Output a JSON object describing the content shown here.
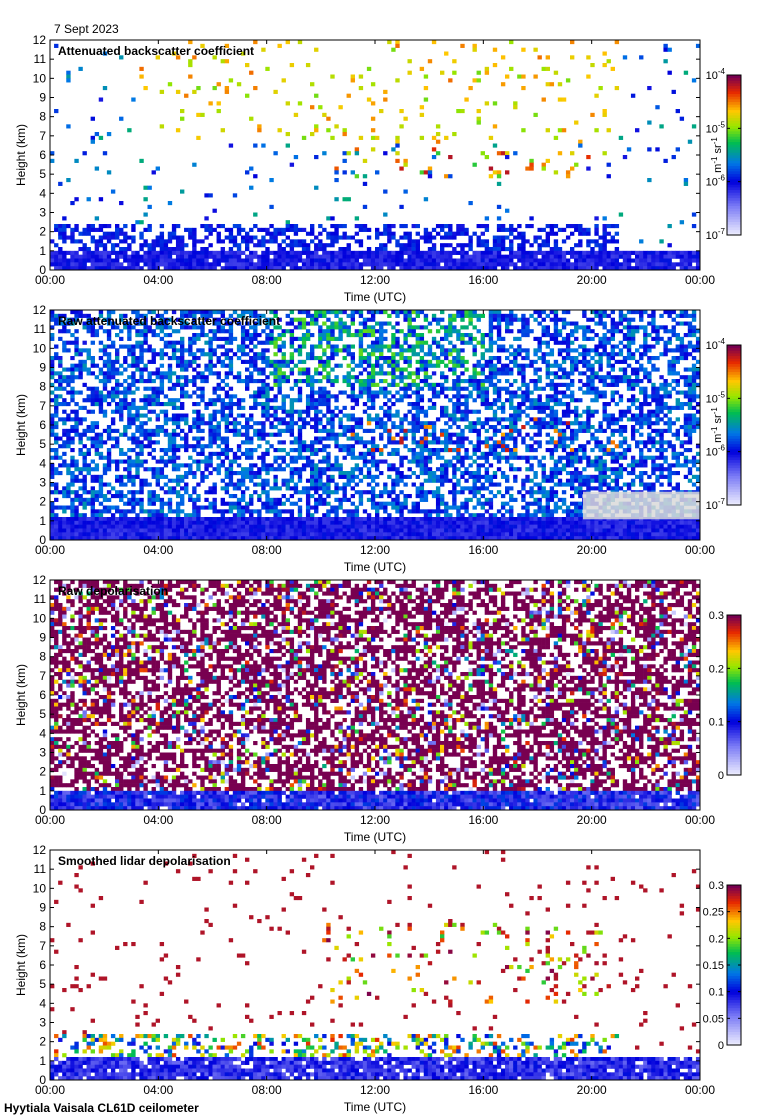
{
  "header": {
    "date": "7 Sept 2023"
  },
  "footer": {
    "instrument": "Hyytiala Vaisala CL61D ceilometer"
  },
  "colors": {
    "frame": "#000000",
    "background": "#ffffff",
    "ground_gray": "#d9d9d9"
  },
  "chart_data": [
    {
      "type": "heatmap",
      "title": "Attenuated backscatter coefficient",
      "xlabel": "Time (UTC)",
      "ylabel": "Height (km)",
      "xticks": [
        "00:00",
        "04:00",
        "08:00",
        "12:00",
        "16:00",
        "20:00",
        "00:00"
      ],
      "xlim_hours": [
        0,
        24
      ],
      "ylim": [
        0,
        12
      ],
      "yticks": [
        "0",
        "1",
        "2",
        "3",
        "4",
        "5",
        "6",
        "7",
        "8",
        "9",
        "10",
        "11",
        "12"
      ],
      "colorbar": {
        "scale": "log",
        "range": [
          1e-07,
          0.0001
        ],
        "tick_bases": [
          "10",
          "10",
          "10",
          "10"
        ],
        "tick_exponents": [
          "-7",
          "-6",
          "-5",
          "-4"
        ],
        "unit_main": "m",
        "unit_exp1": "-1",
        "unit_mid": " sr",
        "unit_exp2": "-1"
      },
      "features": {
        "boundary_layer_km": [
          0,
          2.5
        ],
        "cloud_layers_km": [
          4.8,
          6.5
        ],
        "high_cloud_km": [
          6.5,
          11.8
        ],
        "noise": "low"
      }
    },
    {
      "type": "heatmap",
      "title": "Raw attenuated backscatter coefficient",
      "xlabel": "Time (UTC)",
      "ylabel": "Height (km)",
      "xticks": [
        "00:00",
        "04:00",
        "08:00",
        "12:00",
        "16:00",
        "20:00",
        "00:00"
      ],
      "xlim_hours": [
        0,
        24
      ],
      "ylim": [
        0,
        12
      ],
      "yticks": [
        "0",
        "1",
        "2",
        "3",
        "4",
        "5",
        "6",
        "7",
        "8",
        "9",
        "10",
        "11",
        "12"
      ],
      "colorbar": {
        "scale": "log",
        "range": [
          1e-07,
          0.0001
        ],
        "tick_bases": [
          "10",
          "10",
          "10",
          "10"
        ],
        "tick_exponents": [
          "-7",
          "-6",
          "-5",
          "-4"
        ],
        "unit_main": "m",
        "unit_exp1": "-1",
        "unit_mid": " sr",
        "unit_exp2": "-1"
      },
      "features": {
        "boundary_layer_km": [
          0,
          1.2
        ],
        "cloud_layers_km": [
          4.5,
          6.5
        ],
        "noise": "high"
      }
    },
    {
      "type": "heatmap",
      "title": "Raw depolarisation",
      "xlabel": "Time (UTC)",
      "ylabel": "Height (km)",
      "xticks": [
        "00:00",
        "04:00",
        "08:00",
        "12:00",
        "16:00",
        "20:00",
        "00:00"
      ],
      "xlim_hours": [
        0,
        24
      ],
      "ylim": [
        0,
        12
      ],
      "yticks": [
        "0",
        "1",
        "2",
        "3",
        "4",
        "5",
        "6",
        "7",
        "8",
        "9",
        "10",
        "11",
        "12"
      ],
      "colorbar": {
        "scale": "linear",
        "range": [
          0,
          0.3
        ],
        "ticks": [
          "0",
          "0.1",
          "0.2",
          "0.3"
        ]
      },
      "features": {
        "boundary_layer_km": [
          0,
          1.0
        ],
        "noise": "very high"
      }
    },
    {
      "type": "heatmap",
      "title": "Smoothed lidar depolarisation",
      "xlabel": "Time (UTC)",
      "ylabel": "Height (km)",
      "xticks": [
        "00:00",
        "04:00",
        "08:00",
        "12:00",
        "16:00",
        "20:00",
        "00:00"
      ],
      "xlim_hours": [
        0,
        24
      ],
      "ylim": [
        0,
        12
      ],
      "yticks": [
        "0",
        "1",
        "2",
        "3",
        "4",
        "5",
        "6",
        "7",
        "8",
        "9",
        "10",
        "11",
        "12"
      ],
      "colorbar": {
        "scale": "linear",
        "range": [
          0,
          0.3
        ],
        "ticks": [
          "0",
          "0.05",
          "0.1",
          "0.15",
          "0.2",
          "0.25",
          "0.3"
        ]
      },
      "features": {
        "boundary_layer_km": [
          0,
          2.5
        ],
        "cloud_layers_km": [
          4.0,
          8.2
        ],
        "noise": "medium"
      }
    }
  ]
}
